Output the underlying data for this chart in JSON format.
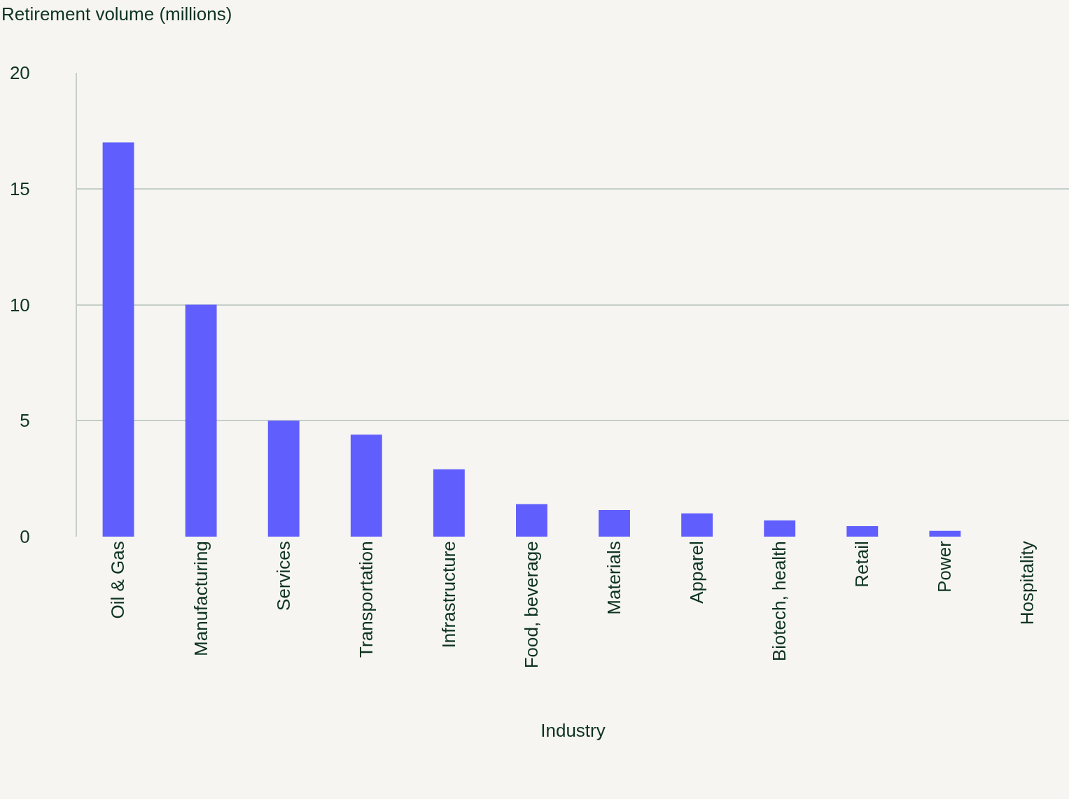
{
  "chart_data": {
    "type": "bar",
    "ylabel": "Retirement volume (millions)",
    "xlabel": "Industry",
    "categories": [
      "Oil & Gas",
      "Manufacturing",
      "Services",
      "Transportation",
      "Infrastructure",
      "Food, beverage",
      "Materials",
      "Apparel",
      "Biotech, health",
      "Retail",
      "Power",
      "Hospitality"
    ],
    "values": [
      17,
      10,
      5,
      4.4,
      2.9,
      1.4,
      1.15,
      1,
      0.7,
      0.45,
      0.25,
      0
    ],
    "color": "#615efe",
    "ylim": [
      0,
      20
    ],
    "yticks": [
      0,
      5,
      10,
      15,
      20
    ],
    "grid": "y"
  }
}
